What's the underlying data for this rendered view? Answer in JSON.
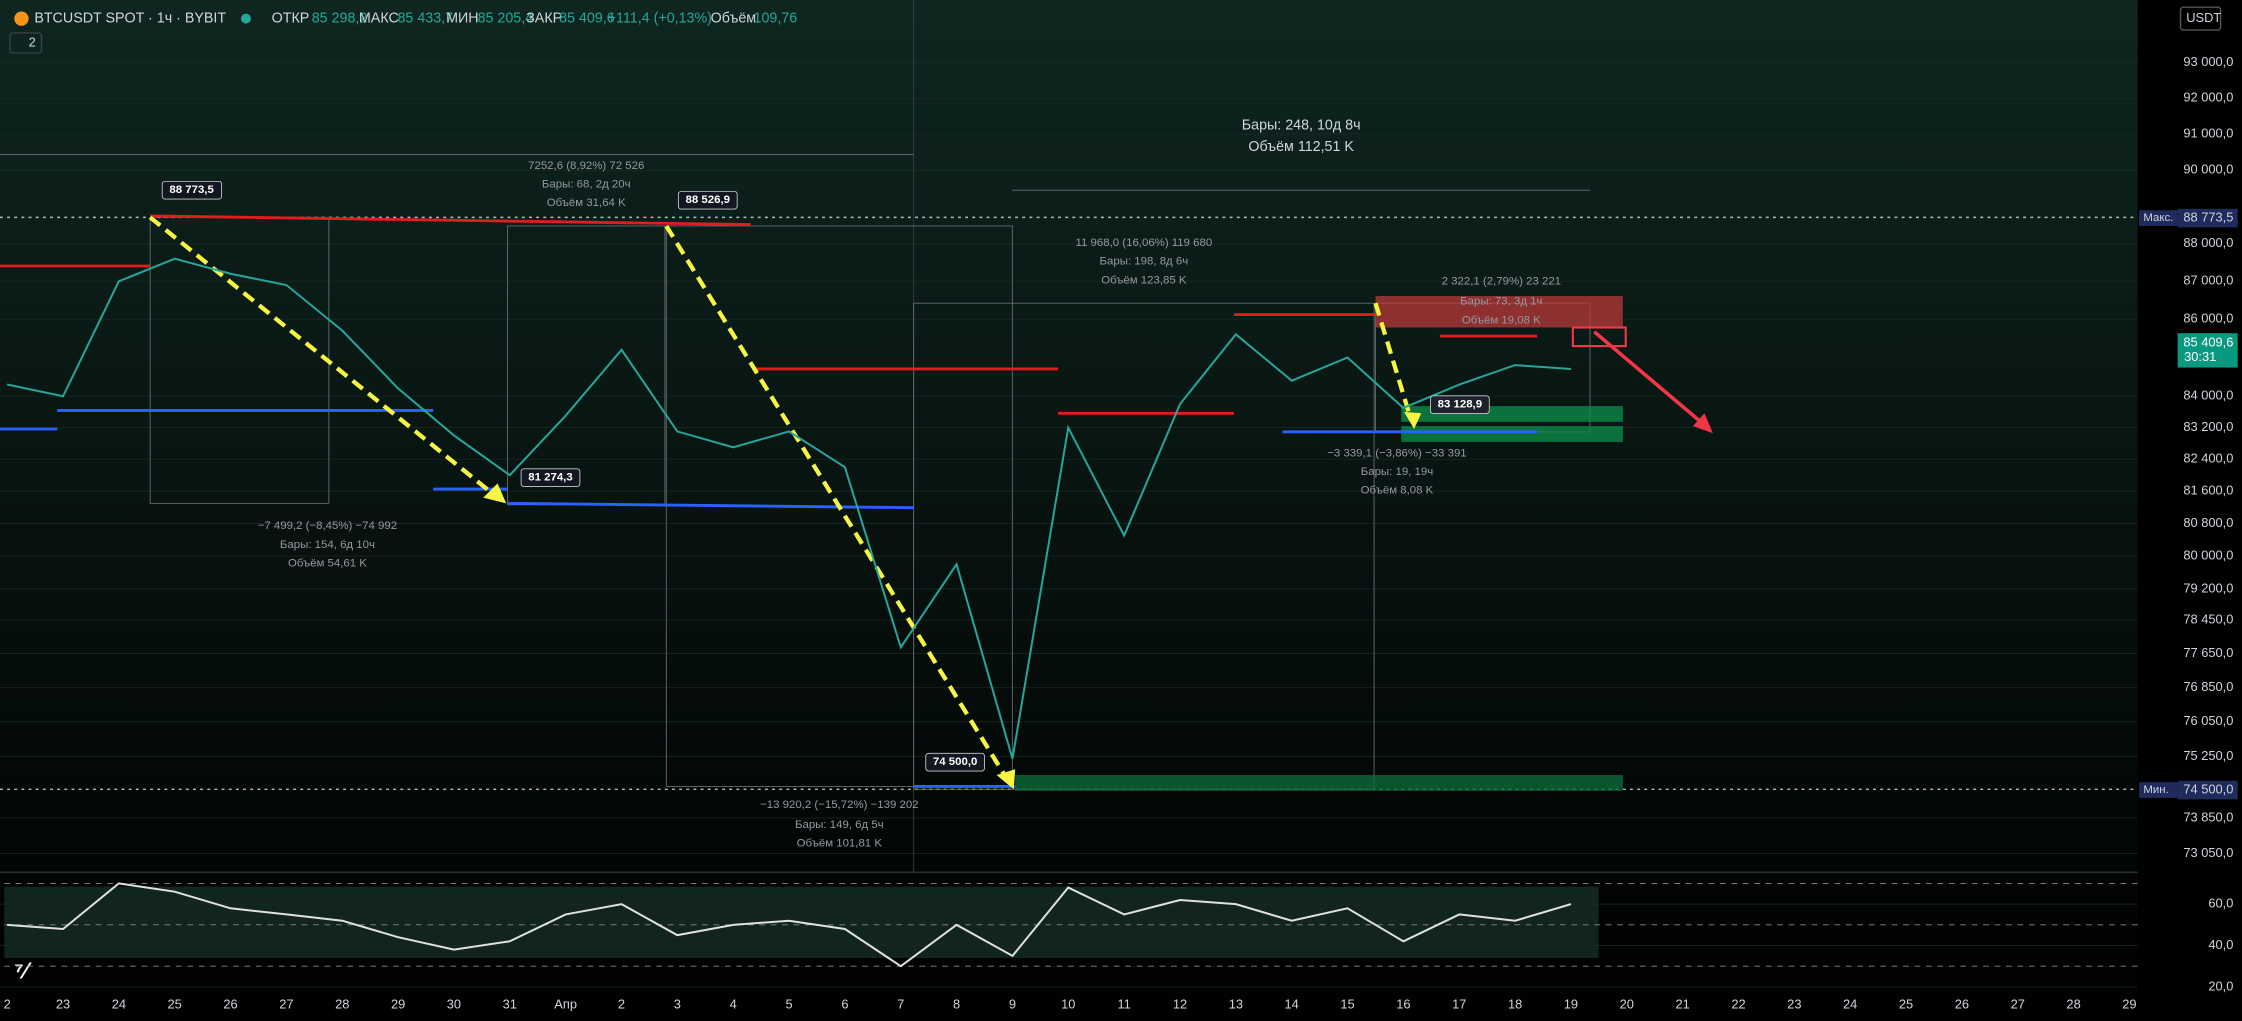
{
  "header": {
    "symbol": "BTCUSDT SPOT · 1ч · BYBIT",
    "open_label": "ОТКР",
    "open": "85 298,2",
    "high_label": "МАКС",
    "high": "85 433,7",
    "low_label": "МИН",
    "low": "85 205,4",
    "close_label": "ЗАКР",
    "close": "85 409,6",
    "change": "+111,4 (+0,13%)",
    "volume_label": "Объём",
    "volume": "109,76",
    "indicators_count": "2",
    "currency": "USDT"
  },
  "price_scale": {
    "max_tag": "Макс.",
    "max_price": "88 773,5",
    "last_price": "85 409,6",
    "countdown": "30:31",
    "min_tag": "Мин.",
    "min_price": "74 500,0"
  },
  "chart_data": [
    {
      "type": "line",
      "log_scale": true,
      "grid": true,
      "color": "#26a69a",
      "categories": [
        "2",
        "23",
        "24",
        "25",
        "26",
        "27",
        "28",
        "29",
        "30",
        "31",
        "Апр",
        "2",
        "3",
        "4",
        "5",
        "6",
        "7",
        "8",
        "9",
        "10",
        "11",
        "12",
        "13",
        "14",
        "15",
        "16",
        "17",
        "18",
        "19",
        "20",
        "21",
        "22",
        "23",
        "24",
        "25",
        "26",
        "27",
        "28",
        "29"
      ],
      "values": [
        84300,
        84000,
        87000,
        87600,
        87200,
        86900,
        85700,
        84200,
        83000,
        82000,
        83500,
        85200,
        83100,
        82700,
        83100,
        82200,
        77800,
        79800,
        75200,
        83200,
        80500,
        83800,
        85600,
        84400,
        85000,
        83700,
        84300,
        84800,
        84700,
        null,
        null,
        null,
        null,
        null,
        null,
        null,
        null,
        null,
        null
      ],
      "ylim": [
        72700,
        94800
      ],
      "yticks": [
        {
          "value": 93000,
          "label": "93 000,0"
        },
        {
          "value": 92000,
          "label": "92 000,0"
        },
        {
          "value": 91000,
          "label": "91 000,0"
        },
        {
          "value": 90000,
          "label": "90 000,0"
        },
        {
          "value": 88000,
          "label": "88 000,0"
        },
        {
          "value": 87000,
          "label": "87 000,0"
        },
        {
          "value": 86000,
          "label": "86 000,0"
        },
        {
          "value": 84000,
          "label": "84 000,0"
        },
        {
          "value": 83200,
          "label": "83 200,0"
        },
        {
          "value": 82400,
          "label": "82 400,0"
        },
        {
          "value": 81600,
          "label": "81 600,0"
        },
        {
          "value": 80800,
          "label": "80 800,0"
        },
        {
          "value": 80000,
          "label": "80 000,0"
        },
        {
          "value": 79200,
          "label": "79 200,0"
        },
        {
          "value": 78450,
          "label": "78 450,0"
        },
        {
          "value": 77650,
          "label": "77 650,0"
        },
        {
          "value": 76850,
          "label": "76 850,0"
        },
        {
          "value": 76050,
          "label": "76 050,0"
        },
        {
          "value": 75250,
          "label": "75 250,0"
        },
        {
          "value": 73850,
          "label": "73 850,0"
        },
        {
          "value": 73050,
          "label": "73 050,0"
        }
      ],
      "annotations": [
        "88 773,5",
        "7252,6 (8,92%) 72 526",
        "Бары: 68, 2д 20ч",
        "Объём 31,64 K",
        "88 526,9",
        "Бары: 248, 10д 8ч",
        "Объём 112,51 K",
        "11 968,0 (16,06%) 119 680",
        "Бары: 198, 8д 6ч",
        "Объём 123,85 K",
        "2 322,1 (2,79%) 23 221",
        "Бары: 73, 3д 1ч",
        "Объём 19,08 K",
        "81 274,3",
        "−7 499,2 (−8,45%) −74 992",
        "Бары: 154, 6д 10ч",
        "Объём 54,61 K",
        "83 128,9",
        "−3 339,1 (−3,86%) −33 391",
        "Бары: 19, 19ч",
        "Объём 8,08 K",
        "74 500,0",
        "−13 920,2 (−15,72%) −139 202",
        "Бары: 149, 6д 5ч",
        "Объём 101,81 K"
      ]
    },
    {
      "type": "line",
      "color": "#e0e0e0",
      "values": [
        50,
        48,
        70,
        66,
        58,
        55,
        52,
        44,
        38,
        42,
        55,
        60,
        45,
        50,
        52,
        48,
        30,
        50,
        35,
        68,
        55,
        62,
        60,
        52,
        58,
        42,
        55,
        52,
        60
      ],
      "ylim": [
        16,
        74
      ],
      "yticks": [
        {
          "value": 60,
          "label": "60,0"
        },
        {
          "value": 40,
          "label": "40,0"
        },
        {
          "value": 20,
          "label": "20,0"
        }
      ],
      "levels": [
        70,
        50,
        30
      ]
    }
  ]
}
